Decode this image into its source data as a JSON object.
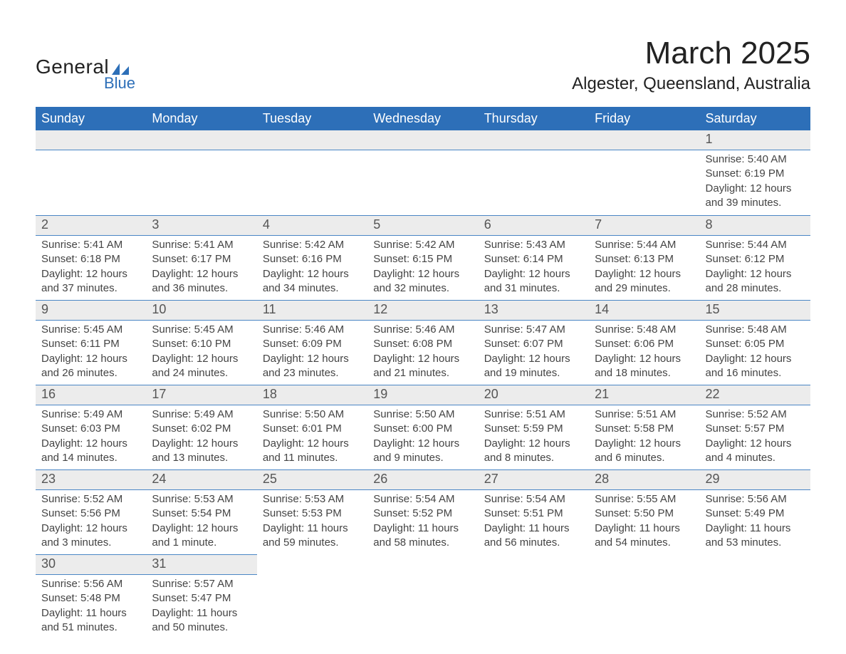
{
  "logo": {
    "top": "General",
    "bottom": "Blue",
    "triangle_color": "#2d6fb8"
  },
  "title": "March 2025",
  "location": "Algester, Queensland, Australia",
  "colors": {
    "header_bg": "#2d6fb8",
    "header_fg": "#ffffff",
    "daynum_bg": "#ececec",
    "row_border": "#4a86c5",
    "text": "#444444"
  },
  "day_headers": [
    "Sunday",
    "Monday",
    "Tuesday",
    "Wednesday",
    "Thursday",
    "Friday",
    "Saturday"
  ],
  "weeks": [
    [
      null,
      null,
      null,
      null,
      null,
      null,
      {
        "n": "1",
        "sr": "5:40 AM",
        "ss": "6:19 PM",
        "dl": "12 hours and 39 minutes."
      }
    ],
    [
      {
        "n": "2",
        "sr": "5:41 AM",
        "ss": "6:18 PM",
        "dl": "12 hours and 37 minutes."
      },
      {
        "n": "3",
        "sr": "5:41 AM",
        "ss": "6:17 PM",
        "dl": "12 hours and 36 minutes."
      },
      {
        "n": "4",
        "sr": "5:42 AM",
        "ss": "6:16 PM",
        "dl": "12 hours and 34 minutes."
      },
      {
        "n": "5",
        "sr": "5:42 AM",
        "ss": "6:15 PM",
        "dl": "12 hours and 32 minutes."
      },
      {
        "n": "6",
        "sr": "5:43 AM",
        "ss": "6:14 PM",
        "dl": "12 hours and 31 minutes."
      },
      {
        "n": "7",
        "sr": "5:44 AM",
        "ss": "6:13 PM",
        "dl": "12 hours and 29 minutes."
      },
      {
        "n": "8",
        "sr": "5:44 AM",
        "ss": "6:12 PM",
        "dl": "12 hours and 28 minutes."
      }
    ],
    [
      {
        "n": "9",
        "sr": "5:45 AM",
        "ss": "6:11 PM",
        "dl": "12 hours and 26 minutes."
      },
      {
        "n": "10",
        "sr": "5:45 AM",
        "ss": "6:10 PM",
        "dl": "12 hours and 24 minutes."
      },
      {
        "n": "11",
        "sr": "5:46 AM",
        "ss": "6:09 PM",
        "dl": "12 hours and 23 minutes."
      },
      {
        "n": "12",
        "sr": "5:46 AM",
        "ss": "6:08 PM",
        "dl": "12 hours and 21 minutes."
      },
      {
        "n": "13",
        "sr": "5:47 AM",
        "ss": "6:07 PM",
        "dl": "12 hours and 19 minutes."
      },
      {
        "n": "14",
        "sr": "5:48 AM",
        "ss": "6:06 PM",
        "dl": "12 hours and 18 minutes."
      },
      {
        "n": "15",
        "sr": "5:48 AM",
        "ss": "6:05 PM",
        "dl": "12 hours and 16 minutes."
      }
    ],
    [
      {
        "n": "16",
        "sr": "5:49 AM",
        "ss": "6:03 PM",
        "dl": "12 hours and 14 minutes."
      },
      {
        "n": "17",
        "sr": "5:49 AM",
        "ss": "6:02 PM",
        "dl": "12 hours and 13 minutes."
      },
      {
        "n": "18",
        "sr": "5:50 AM",
        "ss": "6:01 PM",
        "dl": "12 hours and 11 minutes."
      },
      {
        "n": "19",
        "sr": "5:50 AM",
        "ss": "6:00 PM",
        "dl": "12 hours and 9 minutes."
      },
      {
        "n": "20",
        "sr": "5:51 AM",
        "ss": "5:59 PM",
        "dl": "12 hours and 8 minutes."
      },
      {
        "n": "21",
        "sr": "5:51 AM",
        "ss": "5:58 PM",
        "dl": "12 hours and 6 minutes."
      },
      {
        "n": "22",
        "sr": "5:52 AM",
        "ss": "5:57 PM",
        "dl": "12 hours and 4 minutes."
      }
    ],
    [
      {
        "n": "23",
        "sr": "5:52 AM",
        "ss": "5:56 PM",
        "dl": "12 hours and 3 minutes."
      },
      {
        "n": "24",
        "sr": "5:53 AM",
        "ss": "5:54 PM",
        "dl": "12 hours and 1 minute."
      },
      {
        "n": "25",
        "sr": "5:53 AM",
        "ss": "5:53 PM",
        "dl": "11 hours and 59 minutes."
      },
      {
        "n": "26",
        "sr": "5:54 AM",
        "ss": "5:52 PM",
        "dl": "11 hours and 58 minutes."
      },
      {
        "n": "27",
        "sr": "5:54 AM",
        "ss": "5:51 PM",
        "dl": "11 hours and 56 minutes."
      },
      {
        "n": "28",
        "sr": "5:55 AM",
        "ss": "5:50 PM",
        "dl": "11 hours and 54 minutes."
      },
      {
        "n": "29",
        "sr": "5:56 AM",
        "ss": "5:49 PM",
        "dl": "11 hours and 53 minutes."
      }
    ],
    [
      {
        "n": "30",
        "sr": "5:56 AM",
        "ss": "5:48 PM",
        "dl": "11 hours and 51 minutes."
      },
      {
        "n": "31",
        "sr": "5:57 AM",
        "ss": "5:47 PM",
        "dl": "11 hours and 50 minutes."
      },
      null,
      null,
      null,
      null,
      null
    ]
  ],
  "labels": {
    "sunrise": "Sunrise: ",
    "sunset": "Sunset: ",
    "daylight": "Daylight: "
  }
}
